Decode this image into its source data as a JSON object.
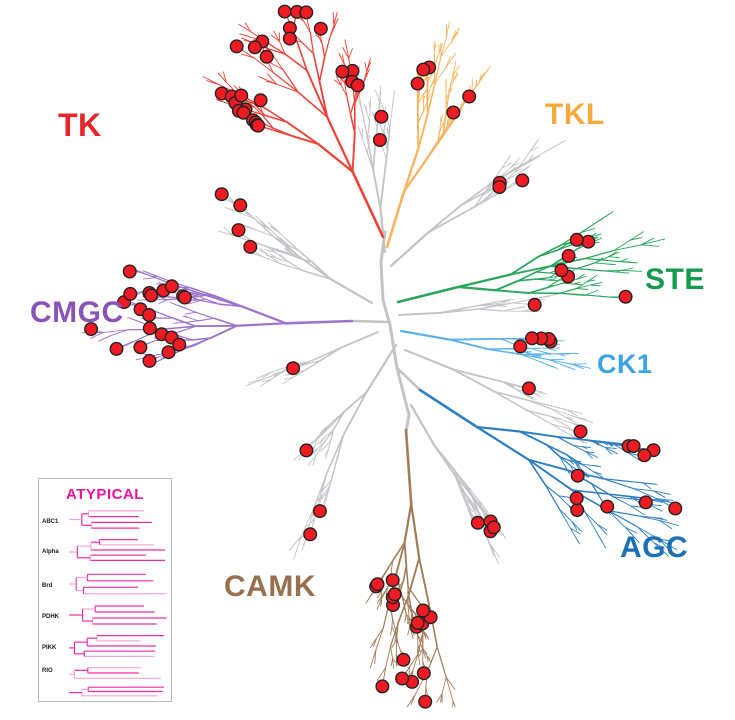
{
  "figure": {
    "type": "radial-phylogenetic-tree",
    "subject": "Human kinome tree: kinase family branches with red kinase markers",
    "background": "#ffffff",
    "marker": {
      "shape": "circle",
      "fill": "#ee1b23",
      "stroke": "#222222"
    },
    "other_branches": {
      "color": "#c2c4c8"
    },
    "families": [
      {
        "label": "TK",
        "label_color": "#e4272a",
        "branch_color": "#ef4136"
      },
      {
        "label": "TKL",
        "label_color": "#f8a93d",
        "branch_color": "#f9b35c"
      },
      {
        "label": "STE",
        "label_color": "#149b4d",
        "branch_color": "#2aa65c"
      },
      {
        "label": "CK1",
        "label_color": "#3ba4e6",
        "branch_color": "#5cb2e8"
      },
      {
        "label": "AGC",
        "label_color": "#1c70b4",
        "branch_color": "#2d7fc1"
      },
      {
        "label": "CAMK",
        "label_color": "#97714f",
        "branch_color": "#a37c58"
      },
      {
        "label": "CMGC",
        "label_color": "#8a54b4",
        "branch_color": "#9d74ca"
      }
    ],
    "atypical_panel": {
      "title": "ATYPICAL",
      "title_color": "#f2109b",
      "line_color_dark": "#ef2da2",
      "line_color_light": "#f8a3d4",
      "label_color": "#1a1a1a",
      "border_color": "#b8b8b8",
      "groups": [
        {
          "label": "ABC1"
        },
        {
          "label": "Alpha"
        },
        {
          "label": "Brd"
        },
        {
          "label": "PDHK"
        },
        {
          "label": "PIKK"
        },
        {
          "label": "RIO"
        }
      ]
    }
  }
}
